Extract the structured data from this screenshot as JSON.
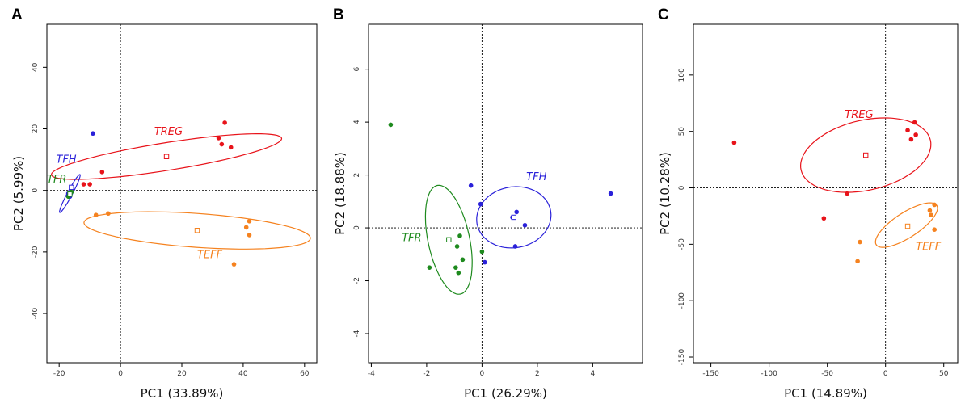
{
  "chart_data": [
    {
      "panel": "A",
      "type": "scatter",
      "xlabel": "PC1 (33.89%)",
      "ylabel": "PC2 (5.99%)",
      "xlim": [
        -24,
        64
      ],
      "ylim": [
        -56,
        54
      ],
      "xticks": [
        -20,
        0,
        20,
        40,
        60
      ],
      "yticks": [
        -40,
        -20,
        0,
        20,
        40
      ],
      "reference_lines": {
        "x": 0,
        "y": 0,
        "style": "dotted"
      },
      "grid": false,
      "series": [
        {
          "name": "TREG",
          "color": "#e8131a",
          "points": [
            [
              -6,
              6
            ],
            [
              -12,
              2
            ],
            [
              -10,
              2
            ],
            [
              32,
              17
            ],
            [
              33,
              15
            ],
            [
              34,
              22
            ],
            [
              36,
              14
            ]
          ],
          "centroid": [
            15,
            11
          ],
          "ellipse": {
            "cx": 15,
            "cy": 11,
            "rx": 38,
            "ry": 4.5,
            "angle_deg": 9
          },
          "label_pos": [
            11,
            18
          ]
        },
        {
          "name": "TEFF",
          "color": "#f5821f",
          "points": [
            [
              -8,
              -8
            ],
            [
              -4,
              -7.5
            ],
            [
              37,
              -24
            ],
            [
              41,
              -12
            ],
            [
              42,
              -10
            ],
            [
              42,
              -14.5
            ]
          ],
          "centroid": [
            25,
            -13
          ],
          "ellipse": {
            "cx": 25,
            "cy": -13,
            "rx": 37,
            "ry": 5.5,
            "angle_deg": -4
          },
          "label_pos": [
            25,
            -22
          ]
        },
        {
          "name": "TFH",
          "color": "#2a21d9",
          "points": [
            [
              -9,
              18.5
            ],
            [
              -17,
              -1
            ],
            [
              -16.5,
              -2
            ],
            [
              -17,
              -1.5
            ]
          ],
          "centroid": [
            -16,
            1
          ],
          "ellipse": {
            "cx": -16.5,
            "cy": -1,
            "rx": 7,
            "ry": 0.8,
            "angle_deg": 62
          },
          "label_pos": [
            -21,
            9
          ]
        },
        {
          "name": "TFR",
          "color": "#1e8a1e",
          "points": [
            [
              -16.5,
              -1
            ],
            [
              -17,
              -2
            ],
            [
              -16,
              -0.5
            ]
          ],
          "centroid": [
            -16.5,
            -1.2
          ],
          "ellipse": {
            "cx": -16.5,
            "cy": -1.2,
            "rx": 1.2,
            "ry": 0.4,
            "angle_deg": 55
          },
          "label_pos": [
            -24,
            2.5
          ]
        }
      ]
    },
    {
      "panel": "B",
      "type": "scatter",
      "xlabel": "PC1 (26.29%)",
      "ylabel": "PC2 (18.88%)",
      "xlim": [
        -4.1,
        5.8
      ],
      "ylim": [
        -5.1,
        7.7
      ],
      "xticks": [
        -4,
        -2,
        0,
        2,
        4
      ],
      "yticks": [
        -4,
        -2,
        0,
        2,
        4,
        6
      ],
      "reference_lines": {
        "x": 0,
        "y": 0,
        "style": "dotted"
      },
      "grid": false,
      "series": [
        {
          "name": "TFH",
          "color": "#2a21d9",
          "points": [
            [
              -0.4,
              1.6
            ],
            [
              -0.05,
              0.9
            ],
            [
              1.1,
              0.4
            ],
            [
              1.25,
              0.6
            ],
            [
              1.55,
              0.1
            ],
            [
              0.1,
              -1.3
            ],
            [
              1.2,
              -0.7
            ],
            [
              4.65,
              1.3
            ]
          ],
          "centroid": [
            1.15,
            0.4
          ],
          "ellipse": {
            "cx": 1.15,
            "cy": 0.4,
            "rx": 1.35,
            "ry": 1.15,
            "angle_deg": 10
          },
          "label_pos": [
            1.6,
            1.8
          ]
        },
        {
          "name": "TFR",
          "color": "#1e8a1e",
          "points": [
            [
              -3.3,
              3.9
            ],
            [
              -1.9,
              -1.5
            ],
            [
              -0.9,
              -0.7
            ],
            [
              -0.8,
              -0.3
            ],
            [
              -0.95,
              -1.5
            ],
            [
              -0.85,
              -1.7
            ],
            [
              -0.7,
              -1.2
            ],
            [
              0,
              -0.9
            ]
          ],
          "centroid": [
            -1.2,
            -0.45
          ],
          "ellipse": {
            "cx": -1.2,
            "cy": -0.45,
            "rx": 0.75,
            "ry": 2.1,
            "angle_deg": 12
          },
          "label_pos": [
            -2.9,
            -0.5
          ]
        }
      ]
    },
    {
      "panel": "C",
      "type": "scatter",
      "xlabel": "PC1 (14.89%)",
      "ylabel": "PC2 (10.28%)",
      "xlim": [
        -165,
        62
      ],
      "ylim": [
        -155,
        145
      ],
      "xticks": [
        -150,
        -100,
        -50,
        0,
        50
      ],
      "yticks": [
        -150,
        -100,
        -50,
        0,
        50,
        100
      ],
      "reference_lines": {
        "x": 0,
        "y": 0,
        "style": "dotted"
      },
      "grid": false,
      "series": [
        {
          "name": "TREG",
          "color": "#e8131a",
          "points": [
            [
              -130,
              40
            ],
            [
              -53,
              -27
            ],
            [
              -33,
              -5
            ],
            [
              19,
              51
            ],
            [
              22,
              43
            ],
            [
              25,
              58
            ],
            [
              26,
              47
            ]
          ],
          "centroid": [
            -17,
            29
          ],
          "ellipse": {
            "cx": -17,
            "cy": 29,
            "rx": 57,
            "ry": 31,
            "angle_deg": 13
          },
          "label_pos": [
            -35,
            62
          ]
        },
        {
          "name": "TEFF",
          "color": "#f5821f",
          "points": [
            [
              -22,
              -48
            ],
            [
              -24,
              -65
            ],
            [
              38,
              -20
            ],
            [
              39,
              -24
            ],
            [
              42,
              -15
            ],
            [
              42,
              -37
            ]
          ],
          "centroid": [
            19,
            -34
          ],
          "ellipse": {
            "cx": 18,
            "cy": -33,
            "rx": 31,
            "ry": 11,
            "angle_deg": 33
          },
          "label_pos": [
            26,
            -55
          ]
        }
      ]
    }
  ]
}
